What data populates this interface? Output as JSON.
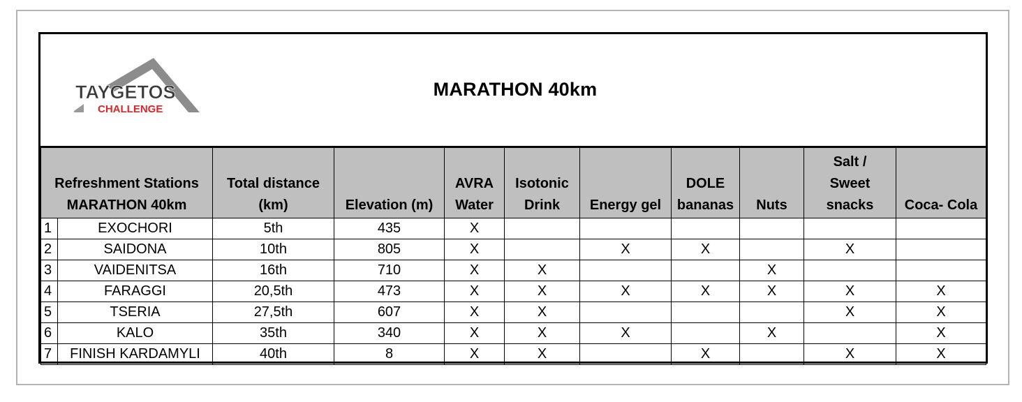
{
  "logo": {
    "line1": "TAYGETOS",
    "line2": "CHALLENGE",
    "colors": {
      "mountain": "#8c8c8c",
      "text_dark": "#3a3a3a",
      "text_red": "#d8262a"
    }
  },
  "title": "MARATHON 40km",
  "table": {
    "headers": [
      {
        "lines": [
          "Refreshment Stations",
          "MARATHON 40km"
        ]
      },
      {
        "lines": [
          "Total distance",
          "(km)"
        ]
      },
      {
        "lines": [
          "Elevation (m)"
        ]
      },
      {
        "lines": [
          "AVRA",
          "Water"
        ]
      },
      {
        "lines": [
          "Isotonic",
          "Drink"
        ]
      },
      {
        "lines": [
          "Energy gel"
        ]
      },
      {
        "lines": [
          "DOLE",
          "bananas"
        ]
      },
      {
        "lines": [
          "Nuts"
        ]
      },
      {
        "lines": [
          "Salt /",
          "Sweet",
          "snacks"
        ]
      },
      {
        "lines": [
          "Coca- Cola"
        ]
      }
    ],
    "rows": [
      {
        "num": "1",
        "station": "EXOCHORI",
        "distance": "5th",
        "elevation": "435",
        "marks": [
          "X",
          "",
          "",
          "",
          "",
          "",
          ""
        ]
      },
      {
        "num": "2",
        "station": "SAIDONA",
        "distance": "10th",
        "elevation": "805",
        "marks": [
          "X",
          "",
          "X",
          "X",
          "",
          "X",
          ""
        ]
      },
      {
        "num": "3",
        "station": "VAIDENITSA",
        "distance": "16th",
        "elevation": "710",
        "marks": [
          "X",
          "X",
          "",
          "",
          "X",
          "",
          ""
        ]
      },
      {
        "num": "4",
        "station": "FARAGGI",
        "distance": "20,5th",
        "elevation": "473",
        "marks": [
          "X",
          "X",
          "X",
          "X",
          "X",
          "X",
          "X"
        ]
      },
      {
        "num": "5",
        "station": "TSERIA",
        "distance": "27,5th",
        "elevation": "607",
        "marks": [
          "X",
          "X",
          "",
          "",
          "",
          "X",
          "X"
        ]
      },
      {
        "num": "6",
        "station": "KALO",
        "distance": "35th",
        "elevation": "340",
        "marks": [
          "X",
          "X",
          "X",
          "",
          "X",
          "",
          "X"
        ]
      },
      {
        "num": "7",
        "station": "FINISH KARDAMYLI",
        "distance": "40th",
        "elevation": "8",
        "marks": [
          "X",
          "X",
          "",
          "X",
          "",
          "X",
          "X"
        ]
      }
    ]
  },
  "colors": {
    "header_fill": "#bfbfbf",
    "border": "#000000",
    "frame": "#b3b3b3"
  }
}
